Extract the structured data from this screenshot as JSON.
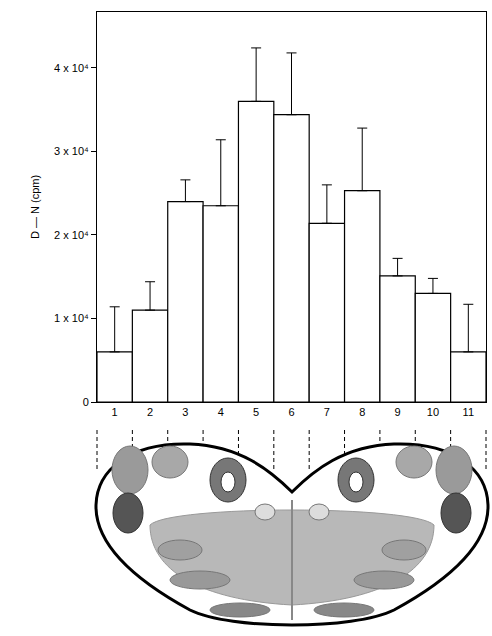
{
  "chart_data": {
    "type": "bar",
    "y_label": "D — N (cpm)",
    "categories": [
      "1",
      "2",
      "3",
      "4",
      "5",
      "6",
      "7",
      "8",
      "9",
      "10",
      "11"
    ],
    "values": [
      6000,
      11000,
      24000,
      23500,
      36000,
      34400,
      21400,
      25300,
      15100,
      13000,
      6000
    ],
    "errors": [
      5400,
      3400,
      2600,
      7900,
      6400,
      7400,
      4600,
      7500,
      2100,
      1800,
      5700
    ],
    "color": "#ffffff",
    "ylim": [
      0,
      46700
    ],
    "yticks": [
      0,
      {
        "value": 10000,
        "label": "1 x 10⁴"
      },
      {
        "value": 20000,
        "label": "2 x 10⁴"
      },
      {
        "value": 30000,
        "label": "3 x 10⁴"
      },
      {
        "value": 40000,
        "label": "4 x 10⁴"
      }
    ],
    "grid": false
  }
}
